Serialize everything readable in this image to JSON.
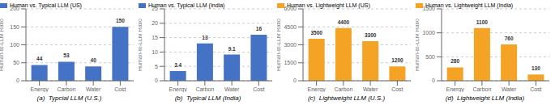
{
  "chart_data": [
    {
      "type": "bar",
      "title": "(a)  Typcial LLM (U.S.)",
      "categories": [
        "Energy",
        "Carbon",
        "Water",
        "Cost"
      ],
      "series": [
        {
          "name": "Human vs. Typical LLM (US)",
          "color": "#4472c4",
          "values": [
            44,
            53,
            40,
            150
          ]
        }
      ],
      "ylim": [
        0,
        200
      ],
      "yticks": [
        0,
        50,
        100,
        150,
        200
      ],
      "ylabel": "Human-to-LLM Ratio",
      "grid": true,
      "legend": "upper left",
      "data_labels": true
    },
    {
      "type": "bar",
      "title": "(b)  Typical LLM (India)",
      "categories": [
        "Energy",
        "Carbon",
        "Water",
        "Cost"
      ],
      "series": [
        {
          "name": "Human vs. Typical LLM (India)",
          "color": "#4472c4",
          "values": [
            3.4,
            13,
            9.1,
            16
          ]
        }
      ],
      "ylim": [
        0,
        25
      ],
      "yticks": [
        0,
        5,
        10,
        15,
        20,
        25
      ],
      "ylabel": "Human-to-LLM Ratio",
      "grid": true,
      "legend": "upper left",
      "data_labels": true
    },
    {
      "type": "bar",
      "title": "(c)  Lightweight LLM (U.S.)",
      "categories": [
        "Energy",
        "Carbon",
        "Water",
        "Cost"
      ],
      "series": [
        {
          "name": "Human vs. Lightweight LLM (US)",
          "color": "#f4a324",
          "values": [
            3500,
            4400,
            3300,
            1200
          ]
        }
      ],
      "ylim": [
        0,
        6000
      ],
      "yticks": [
        0,
        1500,
        3000,
        4500,
        6000
      ],
      "ylabel": "Human-to-LLM Ratio",
      "grid": true,
      "legend": "upper left",
      "data_labels": true
    },
    {
      "type": "bar",
      "title": "(d)  Lightweight LLM (India)",
      "categories": [
        "Energy",
        "Carbon",
        "Water",
        "Cost"
      ],
      "series": [
        {
          "name": "Human vs. Lightweight LLM (India)",
          "color": "#f4a324",
          "values": [
            280,
            1100,
            760,
            130
          ]
        }
      ],
      "ylim": [
        0,
        1500
      ],
      "yticks": [
        0,
        500,
        1000,
        1500
      ],
      "ylabel": "Human-to-LLM Ratio",
      "grid": true,
      "legend": "upper left",
      "data_labels": true
    }
  ]
}
